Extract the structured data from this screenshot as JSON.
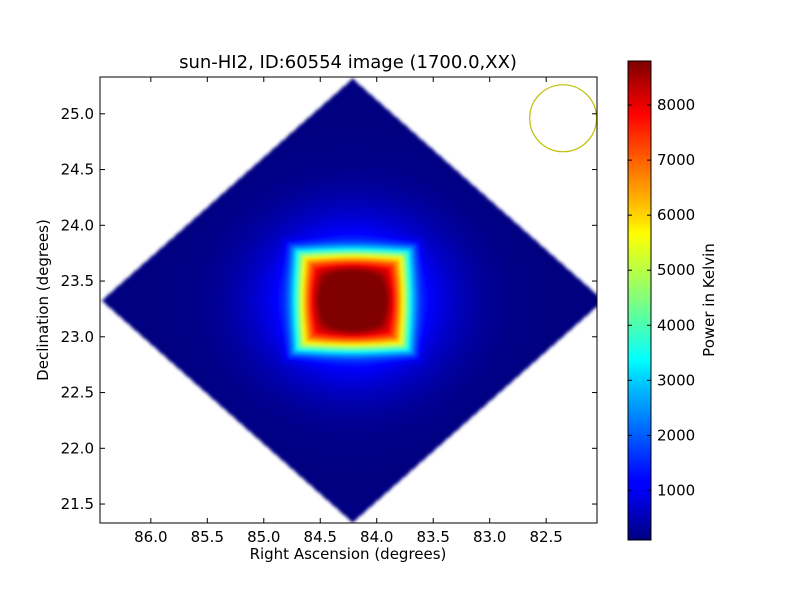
{
  "chart_data": {
    "type": "heatmap",
    "title": "sun-HI2, ID:60554 image (1700.0,XX)",
    "xlabel": "Right Ascension (degrees)",
    "ylabel": "Declination (degrees)",
    "xlim": [
      86.45,
      82.05
    ],
    "ylim": [
      21.33,
      25.33
    ],
    "x_ticks": [
      86.0,
      85.5,
      85.0,
      84.5,
      84.0,
      83.5,
      83.0,
      82.5
    ],
    "x_tick_labels": [
      "86.0",
      "85.5",
      "85.0",
      "84.5",
      "84.0",
      "83.5",
      "83.0",
      "82.5"
    ],
    "y_ticks": [
      21.5,
      22.0,
      22.5,
      23.0,
      23.5,
      24.0,
      24.5,
      25.0
    ],
    "y_tick_labels": [
      "21.5",
      "22.0",
      "22.5",
      "23.0",
      "23.5",
      "24.0",
      "24.5",
      "25.0"
    ],
    "image_extent": {
      "center_ra": 84.22,
      "center_dec": 23.33,
      "half_width_ra": 2.22,
      "half_width_dec": 1.99
    },
    "peak": {
      "ra": 84.22,
      "dec": 23.33,
      "value": 8800
    },
    "min_value": 100,
    "colormap": "jet",
    "colorbar": {
      "label": "Power in Kelvin",
      "range": [
        100,
        8800
      ],
      "ticks": [
        1000,
        2000,
        3000,
        4000,
        5000,
        6000,
        7000,
        8000
      ],
      "tick_labels": [
        "1000",
        "2000",
        "3000",
        "4000",
        "5000",
        "6000",
        "7000",
        "8000"
      ]
    },
    "beam_circle": {
      "ra": 82.35,
      "dec": 24.96,
      "radius_deg": 0.3,
      "color": "#bfbf00"
    },
    "grid": false
  }
}
